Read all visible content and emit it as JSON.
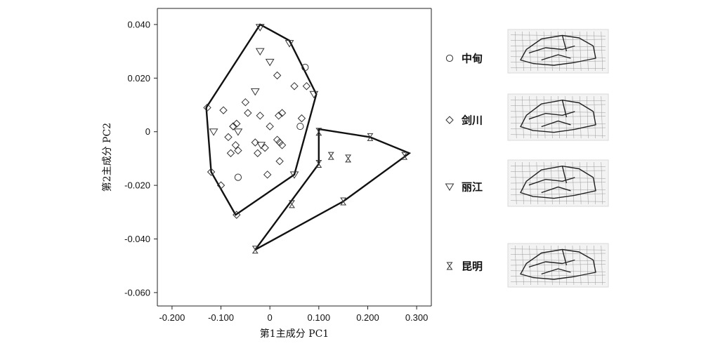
{
  "chart_data": {
    "type": "scatter",
    "xlabel": "第1主成分 PC1",
    "ylabel": "第2主成分 PC2",
    "xlim": [
      -0.23,
      0.33
    ],
    "ylim": [
      -0.065,
      0.046
    ],
    "xticks": [
      -0.2,
      -0.1,
      0,
      0.1,
      0.2,
      0.3
    ],
    "xtick_labels": [
      "-0.200",
      "-0.100",
      "0",
      "0.100",
      "0.200",
      "0.300"
    ],
    "yticks": [
      0.04,
      0.02,
      0,
      -0.02,
      -0.04,
      -0.06
    ],
    "ytick_labels": [
      "0.040",
      "0.020",
      "0",
      "-0.020",
      "-0.040",
      "-0.060"
    ],
    "grid": false,
    "legend_position": "right",
    "series": [
      {
        "name": "中甸",
        "marker": "circle",
        "points": [
          [
            0.072,
            0.024
          ],
          [
            0.062,
            0.002
          ],
          [
            -0.065,
            -0.017
          ]
        ]
      },
      {
        "name": "剑川",
        "marker": "diamond",
        "points": [
          [
            -0.128,
            0.009
          ],
          [
            -0.12,
            -0.015
          ],
          [
            -0.1,
            -0.02
          ],
          [
            -0.068,
            -0.031
          ],
          [
            -0.095,
            0.008
          ],
          [
            -0.075,
            0.002
          ],
          [
            -0.068,
            0.003
          ],
          [
            -0.07,
            -0.005
          ],
          [
            -0.085,
            -0.002
          ],
          [
            -0.08,
            -0.008
          ],
          [
            -0.065,
            -0.007
          ],
          [
            -0.05,
            0.011
          ],
          [
            -0.045,
            0.007
          ],
          [
            -0.03,
            -0.004
          ],
          [
            -0.02,
            0.006
          ],
          [
            -0.025,
            -0.008
          ],
          [
            -0.01,
            -0.006
          ],
          [
            0.0,
            0.002
          ],
          [
            -0.005,
            -0.016
          ],
          [
            0.015,
            -0.003
          ],
          [
            0.018,
            0.006
          ],
          [
            0.02,
            -0.004
          ],
          [
            0.025,
            -0.005
          ],
          [
            0.025,
            0.007
          ],
          [
            0.02,
            -0.011
          ],
          [
            0.015,
            0.021
          ],
          [
            0.05,
            0.017
          ],
          [
            0.075,
            0.017
          ],
          [
            0.065,
            0.005
          ],
          [
            -0.075,
            0.002
          ]
        ]
      },
      {
        "name": "丽江",
        "marker": "triangle-down",
        "points": [
          [
            -0.02,
            0.039
          ],
          [
            0.04,
            0.033
          ],
          [
            -0.02,
            0.03
          ],
          [
            0.0,
            0.026
          ],
          [
            -0.03,
            0.015
          ],
          [
            0.09,
            0.014
          ],
          [
            -0.115,
            0.0
          ],
          [
            -0.065,
            0.0
          ],
          [
            -0.018,
            -0.005
          ],
          [
            0.05,
            -0.016
          ]
        ]
      },
      {
        "name": "昆明",
        "marker": "hourglass",
        "points": [
          [
            0.1,
            0.0
          ],
          [
            0.205,
            -0.002
          ],
          [
            0.275,
            -0.009
          ],
          [
            0.125,
            -0.009
          ],
          [
            0.16,
            -0.01
          ],
          [
            0.1,
            -0.012
          ],
          [
            0.045,
            -0.027
          ],
          [
            0.15,
            -0.026
          ],
          [
            -0.03,
            -0.044
          ]
        ]
      }
    ],
    "hulls": [
      {
        "name": "left-group",
        "points": [
          [
            -0.02,
            0.04
          ],
          [
            0.04,
            0.034
          ],
          [
            0.095,
            0.014
          ],
          [
            0.05,
            -0.016
          ],
          [
            -0.07,
            -0.031
          ],
          [
            -0.12,
            -0.015
          ],
          [
            -0.13,
            0.009
          ]
        ]
      },
      {
        "name": "kunming",
        "points": [
          [
            0.1,
            0.001
          ],
          [
            0.205,
            -0.002
          ],
          [
            0.285,
            -0.008
          ],
          [
            0.15,
            -0.026
          ],
          [
            -0.03,
            -0.044
          ],
          [
            0.1,
            -0.012
          ]
        ]
      }
    ]
  },
  "legend": {
    "items": [
      {
        "label": "中甸",
        "marker": "circle"
      },
      {
        "label": "剑川",
        "marker": "diamond"
      },
      {
        "label": "丽江",
        "marker": "triangle-down"
      },
      {
        "label": "昆明",
        "marker": "hourglass"
      }
    ]
  },
  "thumbnails": [
    {
      "name": "skull-shape-zhongdian"
    },
    {
      "name": "skull-shape-jianchuan"
    },
    {
      "name": "skull-shape-lijiang"
    },
    {
      "name": "skull-shape-kunming"
    }
  ]
}
